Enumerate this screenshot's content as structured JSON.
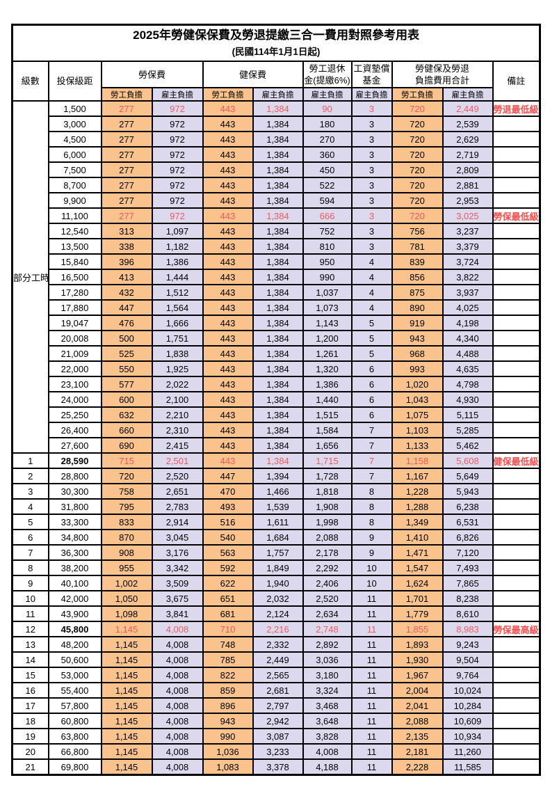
{
  "title": "2025年勞健保保費及勞退提繳三合一費用對照參考用表",
  "subtitle": "(民國114年1月1日起)",
  "header": {
    "level": "級數",
    "bracket": "投保級距",
    "labor": "勞保費",
    "health": "健保費",
    "pension_l1": "勞工退休",
    "pension_l2": "金(提繳6%)",
    "fund_l1": "工資墊償",
    "fund_l2": "基金",
    "total_l1": "勞健保及勞退",
    "total_l2": "負擔費用合計",
    "remark": "備註",
    "employee": "勞工負擔",
    "employer": "雇主負擔"
  },
  "colors": {
    "employee_bg": "#fac28c",
    "employer_bg": "#dcd9ee",
    "highlight_value_red": "#ef5a5c",
    "remark_red": "#fb4d4d",
    "border": "#000000"
  },
  "rows": [
    {
      "level": "部分工時",
      "level_span": 23,
      "bracket": "1,500",
      "values": [
        "277",
        "972",
        "443",
        "1,384",
        "90",
        "3",
        "720",
        "2,449"
      ],
      "remark": "勞退最低級距",
      "red": true
    },
    {
      "bracket": "3,000",
      "values": [
        "277",
        "972",
        "443",
        "1,384",
        "180",
        "3",
        "720",
        "2,539"
      ],
      "remark": ""
    },
    {
      "bracket": "4,500",
      "values": [
        "277",
        "972",
        "443",
        "1,384",
        "270",
        "3",
        "720",
        "2,629"
      ],
      "remark": ""
    },
    {
      "bracket": "6,000",
      "values": [
        "277",
        "972",
        "443",
        "1,384",
        "360",
        "3",
        "720",
        "2,719"
      ],
      "remark": ""
    },
    {
      "bracket": "7,500",
      "values": [
        "277",
        "972",
        "443",
        "1,384",
        "450",
        "3",
        "720",
        "2,809"
      ],
      "remark": ""
    },
    {
      "bracket": "8,700",
      "values": [
        "277",
        "972",
        "443",
        "1,384",
        "522",
        "3",
        "720",
        "2,881"
      ],
      "remark": ""
    },
    {
      "bracket": "9,900",
      "values": [
        "277",
        "972",
        "443",
        "1,384",
        "594",
        "3",
        "720",
        "2,953"
      ],
      "remark": ""
    },
    {
      "bracket": "11,100",
      "values": [
        "277",
        "972",
        "443",
        "1,384",
        "666",
        "3",
        "720",
        "3,025"
      ],
      "remark": "勞保最低級距",
      "red": true
    },
    {
      "bracket": "12,540",
      "values": [
        "313",
        "1,097",
        "443",
        "1,384",
        "752",
        "3",
        "756",
        "3,237"
      ],
      "remark": ""
    },
    {
      "bracket": "13,500",
      "values": [
        "338",
        "1,182",
        "443",
        "1,384",
        "810",
        "3",
        "781",
        "3,379"
      ],
      "remark": ""
    },
    {
      "bracket": "15,840",
      "values": [
        "396",
        "1,386",
        "443",
        "1,384",
        "950",
        "4",
        "839",
        "3,724"
      ],
      "remark": ""
    },
    {
      "bracket": "16,500",
      "values": [
        "413",
        "1,444",
        "443",
        "1,384",
        "990",
        "4",
        "856",
        "3,822"
      ],
      "remark": ""
    },
    {
      "bracket": "17,280",
      "values": [
        "432",
        "1,512",
        "443",
        "1,384",
        "1,037",
        "4",
        "875",
        "3,937"
      ],
      "remark": ""
    },
    {
      "bracket": "17,880",
      "values": [
        "447",
        "1,564",
        "443",
        "1,384",
        "1,073",
        "4",
        "890",
        "4,025"
      ],
      "remark": ""
    },
    {
      "bracket": "19,047",
      "values": [
        "476",
        "1,666",
        "443",
        "1,384",
        "1,143",
        "5",
        "919",
        "4,198"
      ],
      "remark": ""
    },
    {
      "bracket": "20,008",
      "values": [
        "500",
        "1,751",
        "443",
        "1,384",
        "1,200",
        "5",
        "943",
        "4,340"
      ],
      "remark": ""
    },
    {
      "bracket": "21,009",
      "values": [
        "525",
        "1,838",
        "443",
        "1,384",
        "1,261",
        "5",
        "968",
        "4,488"
      ],
      "remark": ""
    },
    {
      "bracket": "22,000",
      "values": [
        "550",
        "1,925",
        "443",
        "1,384",
        "1,320",
        "6",
        "993",
        "4,635"
      ],
      "remark": ""
    },
    {
      "bracket": "23,100",
      "values": [
        "577",
        "2,022",
        "443",
        "1,384",
        "1,386",
        "6",
        "1,020",
        "4,798"
      ],
      "remark": ""
    },
    {
      "bracket": "24,000",
      "values": [
        "600",
        "2,100",
        "443",
        "1,384",
        "1,440",
        "6",
        "1,043",
        "4,930"
      ],
      "remark": ""
    },
    {
      "bracket": "25,250",
      "values": [
        "632",
        "2,210",
        "443",
        "1,384",
        "1,515",
        "6",
        "1,075",
        "5,115"
      ],
      "remark": ""
    },
    {
      "bracket": "26,400",
      "values": [
        "660",
        "2,310",
        "443",
        "1,384",
        "1,584",
        "7",
        "1,103",
        "5,285"
      ],
      "remark": ""
    },
    {
      "bracket": "27,600",
      "values": [
        "690",
        "2,415",
        "443",
        "1,384",
        "1,656",
        "7",
        "1,133",
        "5,462"
      ],
      "remark": ""
    },
    {
      "level": "1",
      "bracket": "28,590",
      "values": [
        "715",
        "2,501",
        "443",
        "1,384",
        "1,715",
        "7",
        "1,158",
        "5,608"
      ],
      "remark": "健保最低級距",
      "red": true,
      "bold": true
    },
    {
      "level": "2",
      "bracket": "28,800",
      "values": [
        "720",
        "2,520",
        "447",
        "1,394",
        "1,728",
        "7",
        "1,167",
        "5,649"
      ],
      "remark": ""
    },
    {
      "level": "3",
      "bracket": "30,300",
      "values": [
        "758",
        "2,651",
        "470",
        "1,466",
        "1,818",
        "8",
        "1,228",
        "5,943"
      ],
      "remark": ""
    },
    {
      "level": "4",
      "bracket": "31,800",
      "values": [
        "795",
        "2,783",
        "493",
        "1,539",
        "1,908",
        "8",
        "1,288",
        "6,238"
      ],
      "remark": ""
    },
    {
      "level": "5",
      "bracket": "33,300",
      "values": [
        "833",
        "2,914",
        "516",
        "1,611",
        "1,998",
        "8",
        "1,349",
        "6,531"
      ],
      "remark": ""
    },
    {
      "level": "6",
      "bracket": "34,800",
      "values": [
        "870",
        "3,045",
        "540",
        "1,684",
        "2,088",
        "9",
        "1,410",
        "6,826"
      ],
      "remark": ""
    },
    {
      "level": "7",
      "bracket": "36,300",
      "values": [
        "908",
        "3,176",
        "563",
        "1,757",
        "2,178",
        "9",
        "1,471",
        "7,120"
      ],
      "remark": ""
    },
    {
      "level": "8",
      "bracket": "38,200",
      "values": [
        "955",
        "3,342",
        "592",
        "1,849",
        "2,292",
        "10",
        "1,547",
        "7,493"
      ],
      "remark": ""
    },
    {
      "level": "9",
      "bracket": "40,100",
      "values": [
        "1,002",
        "3,509",
        "622",
        "1,940",
        "2,406",
        "10",
        "1,624",
        "7,865"
      ],
      "remark": ""
    },
    {
      "level": "10",
      "bracket": "42,000",
      "values": [
        "1,050",
        "3,675",
        "651",
        "2,032",
        "2,520",
        "11",
        "1,701",
        "8,238"
      ],
      "remark": ""
    },
    {
      "level": "11",
      "bracket": "43,900",
      "values": [
        "1,098",
        "3,841",
        "681",
        "2,124",
        "2,634",
        "11",
        "1,779",
        "8,610"
      ],
      "remark": ""
    },
    {
      "level": "12",
      "bracket": "45,800",
      "values": [
        "1,145",
        "4,008",
        "710",
        "2,216",
        "2,748",
        "11",
        "1,855",
        "8,983"
      ],
      "remark": "勞保最高級距",
      "red": true,
      "bold": true
    },
    {
      "level": "13",
      "bracket": "48,200",
      "values": [
        "1,145",
        "4,008",
        "748",
        "2,332",
        "2,892",
        "11",
        "1,893",
        "9,243"
      ],
      "remark": ""
    },
    {
      "level": "14",
      "bracket": "50,600",
      "values": [
        "1,145",
        "4,008",
        "785",
        "2,449",
        "3,036",
        "11",
        "1,930",
        "9,504"
      ],
      "remark": ""
    },
    {
      "level": "15",
      "bracket": "53,000",
      "values": [
        "1,145",
        "4,008",
        "822",
        "2,565",
        "3,180",
        "11",
        "1,967",
        "9,764"
      ],
      "remark": ""
    },
    {
      "level": "16",
      "bracket": "55,400",
      "values": [
        "1,145",
        "4,008",
        "859",
        "2,681",
        "3,324",
        "11",
        "2,004",
        "10,024"
      ],
      "remark": ""
    },
    {
      "level": "17",
      "bracket": "57,800",
      "values": [
        "1,145",
        "4,008",
        "896",
        "2,797",
        "3,468",
        "11",
        "2,041",
        "10,284"
      ],
      "remark": ""
    },
    {
      "level": "18",
      "bracket": "60,800",
      "values": [
        "1,145",
        "4,008",
        "943",
        "2,942",
        "3,648",
        "11",
        "2,088",
        "10,609"
      ],
      "remark": ""
    },
    {
      "level": "19",
      "bracket": "63,800",
      "values": [
        "1,145",
        "4,008",
        "990",
        "3,087",
        "3,828",
        "11",
        "2,135",
        "10,934"
      ],
      "remark": ""
    },
    {
      "level": "20",
      "bracket": "66,800",
      "values": [
        "1,145",
        "4,008",
        "1,036",
        "3,233",
        "4,008",
        "11",
        "2,181",
        "11,260"
      ],
      "remark": ""
    },
    {
      "level": "21",
      "bracket": "69,800",
      "values": [
        "1,145",
        "4,008",
        "1,083",
        "3,378",
        "4,188",
        "11",
        "2,228",
        "11,585"
      ],
      "remark": ""
    }
  ]
}
